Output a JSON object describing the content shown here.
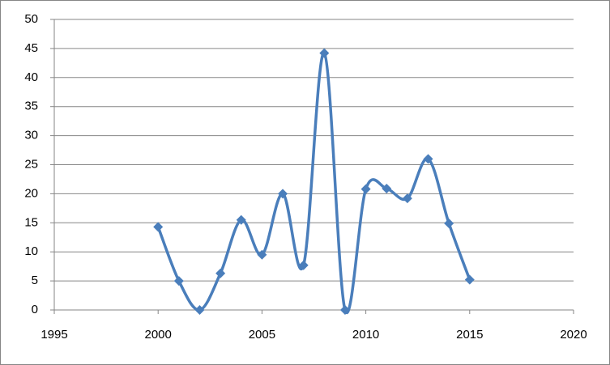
{
  "chart_data": {
    "type": "scatter-smooth",
    "x": [
      2000,
      2001,
      2002,
      2003,
      2004,
      2005,
      2006,
      2007,
      2008,
      2009,
      2010,
      2011,
      2012,
      2013,
      2014,
      2015
    ],
    "series": [
      {
        "color": "#4a7ebb",
        "values": [
          14.3,
          5.0,
          0,
          6.3,
          15.5,
          9.5,
          20.0,
          7.7,
          44.2,
          0,
          20.8,
          20.9,
          19.2,
          26.0,
          14.9,
          5.2
        ]
      }
    ],
    "xlim": [
      1995,
      2020
    ],
    "xticks": [
      1995,
      2000,
      2005,
      2010,
      2015,
      2020
    ],
    "ylim": [
      0,
      50
    ],
    "yticks": [
      0,
      5,
      10,
      15,
      20,
      25,
      30,
      35,
      40,
      45,
      50
    ],
    "grid": true
  }
}
